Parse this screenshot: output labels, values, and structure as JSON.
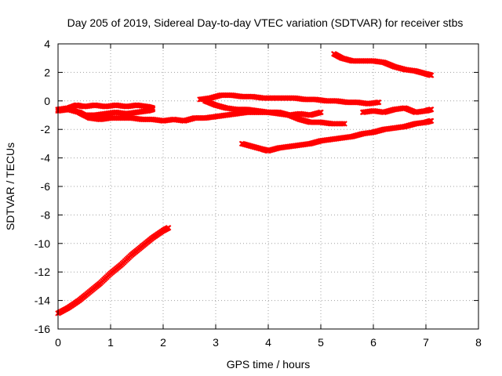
{
  "chart_data": {
    "type": "scatter",
    "title": "Day 205 of 2019, Sidereal Day-to-day VTEC variation (SDTVAR) for receiver stbs",
    "xlabel": "GPS time / hours",
    "ylabel": "SDTVAR / TECUs",
    "xlim": [
      0,
      8
    ],
    "ylim": [
      -16,
      4
    ],
    "xticks": [
      "0",
      "1",
      "2",
      "3",
      "4",
      "5",
      "6",
      "7",
      "8"
    ],
    "yticks": [
      "4",
      "2",
      "0",
      "-2",
      "-4",
      "-6",
      "-8",
      "-10",
      "-12",
      "-14",
      "-16"
    ],
    "grid": true,
    "marker": "cross",
    "color": "#ff0000",
    "series": [
      {
        "x": [
          0.0,
          0.2,
          0.4,
          0.6,
          0.8,
          1.0,
          1.2,
          1.4,
          1.6,
          1.8,
          2.0,
          2.1
        ],
        "y": [
          -14.9,
          -14.5,
          -14.0,
          -13.4,
          -12.8,
          -12.1,
          -11.5,
          -10.8,
          -10.2,
          -9.6,
          -9.1,
          -8.9
        ]
      },
      {
        "x": [
          0.0,
          0.2,
          0.35,
          0.5,
          0.7,
          0.9,
          1.1,
          1.3,
          1.5,
          1.7,
          1.8
        ],
        "y": [
          -0.6,
          -0.5,
          -0.3,
          -0.4,
          -0.3,
          -0.4,
          -0.3,
          -0.4,
          -0.3,
          -0.4,
          -0.5
        ]
      },
      {
        "x": [
          0.0,
          0.2,
          0.4,
          0.5,
          0.7,
          0.9,
          1.1,
          1.3,
          1.5,
          1.7,
          1.8
        ],
        "y": [
          -0.7,
          -0.6,
          -0.8,
          -1.0,
          -1.0,
          -0.9,
          -0.8,
          -0.9,
          -0.8,
          -0.7,
          -0.6
        ]
      },
      {
        "x": [
          0.4,
          0.6,
          0.8,
          1.0,
          1.2,
          1.4,
          1.6,
          1.8,
          2.0,
          2.2,
          2.4,
          2.6,
          2.8,
          3.0,
          3.2,
          3.4,
          3.6,
          3.8,
          4.0,
          4.2,
          4.4,
          4.6,
          4.8,
          5.0
        ],
        "y": [
          -0.8,
          -1.2,
          -1.3,
          -1.2,
          -1.2,
          -1.2,
          -1.3,
          -1.3,
          -1.4,
          -1.3,
          -1.4,
          -1.2,
          -1.2,
          -1.1,
          -1.0,
          -0.9,
          -0.8,
          -0.8,
          -0.8,
          -0.9,
          -1.0,
          -0.9,
          -1.0,
          -0.8
        ]
      },
      {
        "x": [
          2.7,
          2.9,
          3.1,
          3.3,
          3.5,
          3.7,
          3.9,
          4.1,
          4.3,
          4.5,
          4.7,
          4.9,
          5.1,
          5.3,
          5.5,
          5.7,
          5.9,
          6.1
        ],
        "y": [
          0.1,
          0.2,
          0.4,
          0.4,
          0.3,
          0.3,
          0.2,
          0.2,
          0.2,
          0.2,
          0.1,
          0.1,
          0.0,
          0.0,
          -0.1,
          -0.1,
          -0.2,
          -0.1
        ]
      },
      {
        "x": [
          2.8,
          3.0,
          3.2,
          3.4,
          3.6,
          3.8,
          4.0,
          4.2,
          4.4,
          4.6,
          4.8,
          5.0,
          5.2,
          5.45
        ],
        "y": [
          0.0,
          -0.3,
          -0.5,
          -0.6,
          -0.6,
          -0.7,
          -0.8,
          -0.8,
          -1.0,
          -1.3,
          -1.5,
          -1.5,
          -1.6,
          -1.6
        ]
      },
      {
        "x": [
          3.5,
          3.7,
          3.9,
          4.0,
          4.2,
          4.4,
          4.6,
          4.8,
          5.0,
          5.2,
          5.4,
          5.6,
          5.8,
          6.0,
          6.2,
          6.4,
          6.6,
          6.8,
          7.0,
          7.1
        ],
        "y": [
          -3.0,
          -3.2,
          -3.4,
          -3.5,
          -3.3,
          -3.2,
          -3.1,
          -3.0,
          -2.8,
          -2.7,
          -2.6,
          -2.5,
          -2.3,
          -2.2,
          -2.0,
          -1.9,
          -1.8,
          -1.6,
          -1.5,
          -1.4
        ]
      },
      {
        "x": [
          5.25,
          5.4,
          5.6,
          5.8,
          6.0,
          6.2,
          6.4,
          6.6,
          6.8,
          7.0,
          7.1
        ],
        "y": [
          3.3,
          3.0,
          2.8,
          2.8,
          2.8,
          2.7,
          2.4,
          2.2,
          2.1,
          1.9,
          1.8
        ]
      },
      {
        "x": [
          5.8,
          6.0,
          6.2,
          6.4,
          6.6,
          6.8,
          7.0,
          7.1
        ],
        "y": [
          -0.8,
          -0.7,
          -0.8,
          -0.6,
          -0.5,
          -0.8,
          -0.7,
          -0.6
        ]
      }
    ]
  }
}
